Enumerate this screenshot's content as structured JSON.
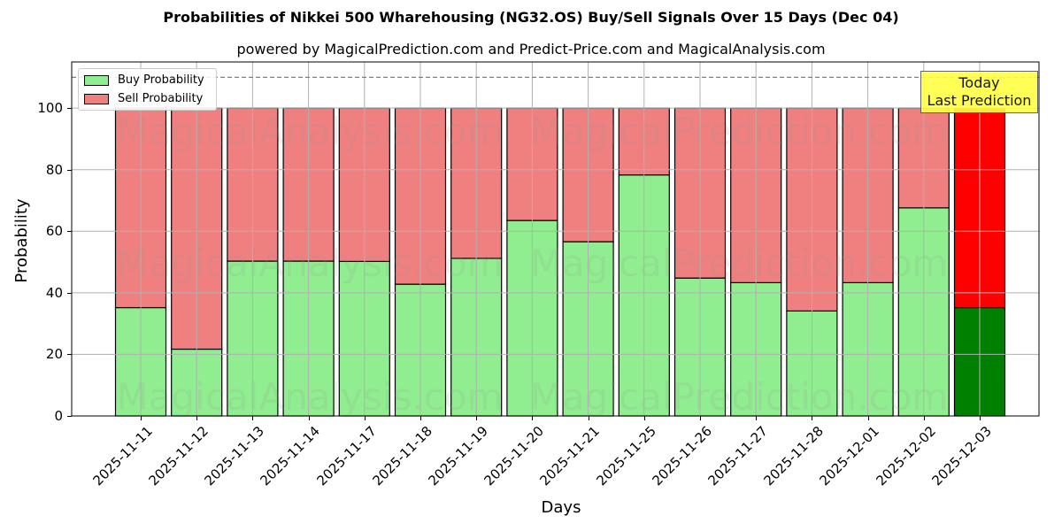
{
  "chart_data": {
    "type": "bar",
    "stacked": true,
    "title": "Probabilities of Nikkei 500 Wharehousing (NG32.OS) Buy/Sell Signals Over 15 Days (Dec 04)",
    "subtitle": "powered by MagicalPrediction.com and Predict-Price.com and MagicalAnalysis.com",
    "xlabel": "Days",
    "ylabel": "Probability",
    "ylim": [
      0,
      115
    ],
    "yticks": [
      0,
      20,
      40,
      60,
      80,
      100
    ],
    "grid": true,
    "legend_position": "upper left",
    "categories": [
      "2025-11-11",
      "2025-11-12",
      "2025-11-13",
      "2025-11-14",
      "2025-11-17",
      "2025-11-18",
      "2025-11-19",
      "2025-11-20",
      "2025-11-21",
      "2025-11-25",
      "2025-11-26",
      "2025-11-27",
      "2025-11-28",
      "2025-12-01",
      "2025-12-02",
      "2025-12-03"
    ],
    "series": [
      {
        "name": "Buy Probability",
        "color": "#90ee90",
        "values": [
          35.2,
          21.7,
          50.3,
          50.3,
          50.2,
          42.8,
          51.2,
          63.5,
          56.6,
          78.3,
          44.8,
          43.3,
          34.1,
          43.3,
          67.6,
          35.2
        ]
      },
      {
        "name": "Sell Probability",
        "color": "#f08080",
        "values": [
          64.8,
          78.3,
          49.7,
          49.7,
          49.8,
          57.2,
          48.8,
          36.5,
          43.4,
          21.7,
          55.2,
          56.7,
          65.9,
          56.7,
          32.4,
          64.8
        ]
      }
    ],
    "highlight": {
      "index": 15,
      "buy_color": "#008000",
      "sell_color": "#ff0000"
    },
    "reference_line": {
      "y": 110,
      "style": "dashed",
      "color": "#808080"
    },
    "annotation": {
      "text_line1": "Today",
      "text_line2": "Last Prediction",
      "background": "#ffff44"
    },
    "watermarks": [
      "MagicalAnalysis.com",
      "MagicalPrediction.com"
    ]
  },
  "legend": {
    "buy": "Buy Probability",
    "sell": "Sell Probability"
  }
}
